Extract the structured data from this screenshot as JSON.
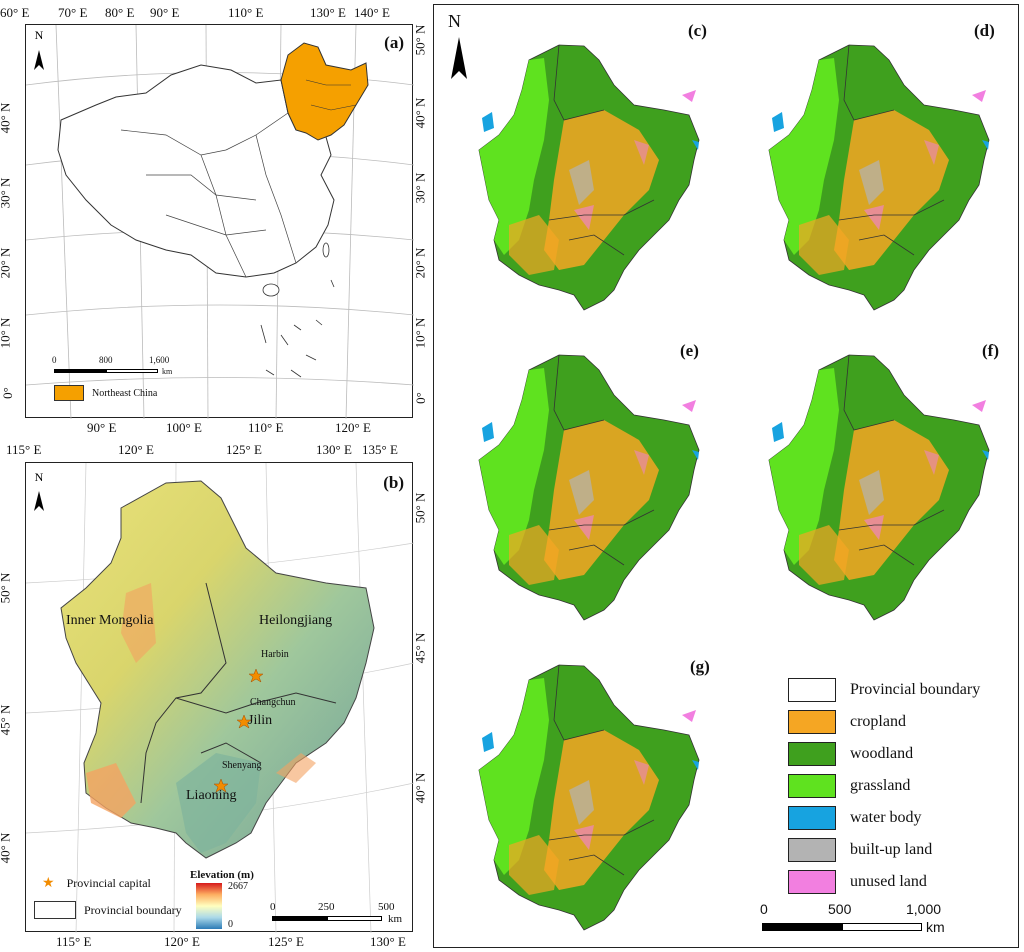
{
  "panel_a": {
    "label": "(a)",
    "top_ticks": [
      "60° E",
      "70° E",
      "80° E",
      "90° E",
      "110° E",
      "130° E",
      "140° E"
    ],
    "bottom_ticks": [
      "90° E",
      "100° E",
      "110° E",
      "120° E"
    ],
    "left_ticks": [
      "40° N",
      "30° N",
      "20° N",
      "10° N",
      "0°"
    ],
    "right_ticks": [
      "50° N",
      "40° N",
      "30° N",
      "20° N",
      "10° N",
      "0°"
    ],
    "scale": {
      "zero": "0",
      "mid": "800",
      "max": "1,600",
      "unit": "km"
    },
    "legend_label": "Northeast China",
    "north": "N",
    "highlight_color": "#F5A000"
  },
  "panel_b": {
    "label": "(b)",
    "top_ticks": [
      "115° E",
      "120° E",
      "125° E",
      "130° E",
      "135° E"
    ],
    "bottom_ticks": [
      "115° E",
      "120° E",
      "125° E",
      "130° E"
    ],
    "left_ticks": [
      "50° N",
      "45° N",
      "40° N"
    ],
    "right_ticks": [
      "50° N",
      "45° N",
      "40° N"
    ],
    "provinces": [
      "Inner Mongolia",
      "Heilongjiang",
      "Jilin",
      "Liaoning"
    ],
    "cities": [
      "Harbin",
      "Changchun",
      "Shenyang"
    ],
    "legend": {
      "capital": "Provincial capital",
      "boundary": "Provincial boundary",
      "elevation_title": "Elevation (m)",
      "elev_max": "2667",
      "elev_min": "0"
    },
    "scale": {
      "zero": "0",
      "mid": "250",
      "max": "500",
      "unit": "km"
    },
    "north": "N"
  },
  "panel_maps": {
    "labels": [
      "(c)",
      "(d)",
      "(e)",
      "(f)",
      "(g)"
    ],
    "north": "N"
  },
  "landuse_legend": {
    "items": [
      {
        "label": "Provincial boundary",
        "color": "#FFFFFF"
      },
      {
        "label": "cropland",
        "color": "#F5A623"
      },
      {
        "label": "woodland",
        "color": "#3FA01E"
      },
      {
        "label": "grassland",
        "color": "#5FE21F"
      },
      {
        "label": "water body",
        "color": "#17A3E0"
      },
      {
        "label": "built-up land",
        "color": "#B3B3B3"
      },
      {
        "label": "unused land",
        "color": "#F27FE0"
      }
    ],
    "scale": {
      "zero": "0",
      "mid": "500",
      "max": "1,000",
      "unit": "km"
    }
  }
}
